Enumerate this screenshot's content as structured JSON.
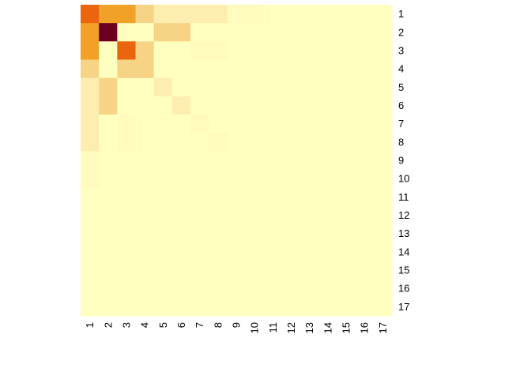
{
  "chart_data": {
    "type": "heatmap",
    "title": "",
    "xlabel": "",
    "ylabel": "",
    "x_labels": [
      "1",
      "2",
      "3",
      "4",
      "5",
      "6",
      "7",
      "8",
      "9",
      "10",
      "11",
      "12",
      "13",
      "14",
      "15",
      "16",
      "17"
    ],
    "y_labels": [
      "1",
      "2",
      "3",
      "4",
      "5",
      "6",
      "7",
      "8",
      "9",
      "10",
      "11",
      "12",
      "13",
      "14",
      "15",
      "16",
      "17"
    ],
    "value_range": [
      0,
      1
    ],
    "color_scale": [
      "#FFFFC0",
      "#FFF6BB",
      "#F8DD98",
      "#F5C46A",
      "#F0920F",
      "#E9500E",
      "#6C0022"
    ],
    "legend": "none",
    "grid": false,
    "values": [
      [
        0.78,
        0.62,
        0.62,
        0.4,
        0.22,
        0.22,
        0.22,
        0.22,
        0.1,
        0.1,
        0,
        0,
        0,
        0,
        0,
        0,
        0
      ],
      [
        0.62,
        1.0,
        0,
        0,
        0.4,
        0.4,
        0,
        0,
        0,
        0,
        0,
        0,
        0,
        0,
        0,
        0,
        0
      ],
      [
        0.62,
        0,
        0.78,
        0.4,
        0,
        0,
        0.1,
        0.1,
        0,
        0,
        0,
        0,
        0,
        0,
        0,
        0,
        0
      ],
      [
        0.4,
        0,
        0.4,
        0.4,
        0,
        0,
        0,
        0,
        0,
        0,
        0,
        0,
        0,
        0,
        0,
        0,
        0
      ],
      [
        0.22,
        0.4,
        0,
        0,
        0.22,
        0,
        0,
        0,
        0,
        0,
        0,
        0,
        0,
        0,
        0,
        0,
        0
      ],
      [
        0.22,
        0.4,
        0,
        0,
        0,
        0.22,
        0,
        0,
        0,
        0,
        0,
        0,
        0,
        0,
        0,
        0,
        0
      ],
      [
        0.22,
        0,
        0.1,
        0,
        0,
        0,
        0.1,
        0,
        0,
        0,
        0,
        0,
        0,
        0,
        0,
        0,
        0
      ],
      [
        0.22,
        0,
        0.1,
        0,
        0,
        0,
        0,
        0.1,
        0,
        0,
        0,
        0,
        0,
        0,
        0,
        0,
        0
      ],
      [
        0.1,
        0,
        0,
        0,
        0,
        0,
        0,
        0,
        0,
        0,
        0,
        0,
        0,
        0,
        0,
        0,
        0
      ],
      [
        0.1,
        0,
        0,
        0,
        0,
        0,
        0,
        0,
        0,
        0,
        0,
        0,
        0,
        0,
        0,
        0,
        0
      ],
      [
        0,
        0,
        0,
        0,
        0,
        0,
        0,
        0,
        0,
        0,
        0,
        0,
        0,
        0,
        0,
        0,
        0
      ],
      [
        0,
        0,
        0,
        0,
        0,
        0,
        0,
        0,
        0,
        0,
        0,
        0,
        0,
        0,
        0,
        0,
        0
      ],
      [
        0,
        0,
        0,
        0,
        0,
        0,
        0,
        0,
        0,
        0,
        0,
        0,
        0,
        0,
        0,
        0,
        0
      ],
      [
        0,
        0,
        0,
        0,
        0,
        0,
        0,
        0,
        0,
        0,
        0,
        0,
        0,
        0,
        0,
        0,
        0
      ],
      [
        0,
        0,
        0,
        0,
        0,
        0,
        0,
        0,
        0,
        0,
        0,
        0,
        0,
        0,
        0,
        0,
        0
      ],
      [
        0,
        0,
        0,
        0,
        0,
        0,
        0,
        0,
        0,
        0,
        0,
        0,
        0,
        0,
        0,
        0,
        0
      ],
      [
        0,
        0,
        0,
        0,
        0,
        0,
        0,
        0,
        0,
        0,
        0,
        0,
        0,
        0,
        0,
        0,
        0
      ]
    ]
  }
}
